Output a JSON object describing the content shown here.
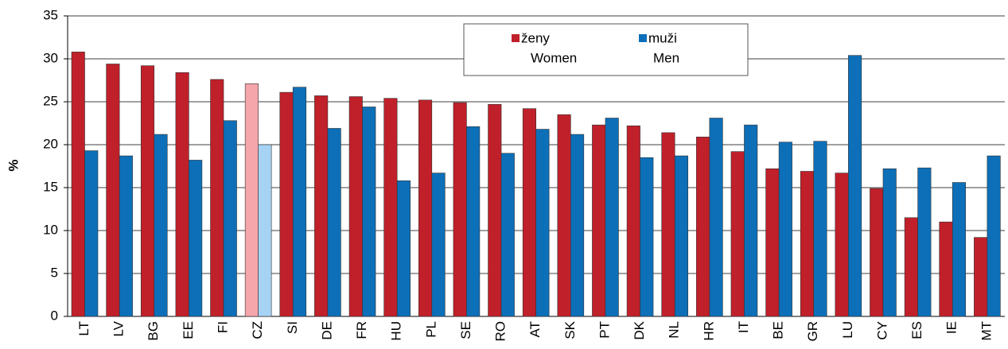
{
  "chart_data": {
    "type": "bar",
    "y_label": "%",
    "categories": [
      "LT",
      "LV",
      "BG",
      "EE",
      "FI",
      "CZ",
      "SI",
      "DE",
      "FR",
      "HU",
      "PL",
      "SE",
      "RO",
      "AT",
      "SK",
      "PT",
      "DK",
      "NL",
      "HR",
      "IT",
      "BE",
      "GR",
      "LU",
      "CY",
      "ES",
      "IE",
      "MT"
    ],
    "series": [
      {
        "name": "ženy",
        "name_en": "Women",
        "color": "#c0202a",
        "highlight_color": "#f4a6ab",
        "values": [
          30.8,
          29.4,
          29.2,
          28.4,
          27.6,
          27.1,
          26.1,
          25.7,
          25.6,
          25.4,
          25.2,
          24.9,
          24.7,
          24.2,
          23.5,
          22.3,
          22.2,
          21.4,
          20.9,
          19.2,
          17.2,
          16.9,
          16.7,
          14.9,
          11.5,
          11.0,
          9.2
        ]
      },
      {
        "name": "muži",
        "name_en": "Men",
        "color": "#0d6fb8",
        "highlight_color": "#a6d2f4",
        "values": [
          19.3,
          18.7,
          21.2,
          18.2,
          22.8,
          20.0,
          26.7,
          21.9,
          24.4,
          15.8,
          16.7,
          22.1,
          19.0,
          21.8,
          21.2,
          23.1,
          18.5,
          18.7,
          23.1,
          22.3,
          20.3,
          20.4,
          30.4,
          17.2,
          17.3,
          15.6,
          18.7
        ]
      }
    ],
    "highlight_index": 5,
    "ylim": [
      0,
      35
    ],
    "yticks": [
      0,
      5,
      10,
      15,
      20,
      25,
      30,
      35
    ],
    "grid": true
  }
}
